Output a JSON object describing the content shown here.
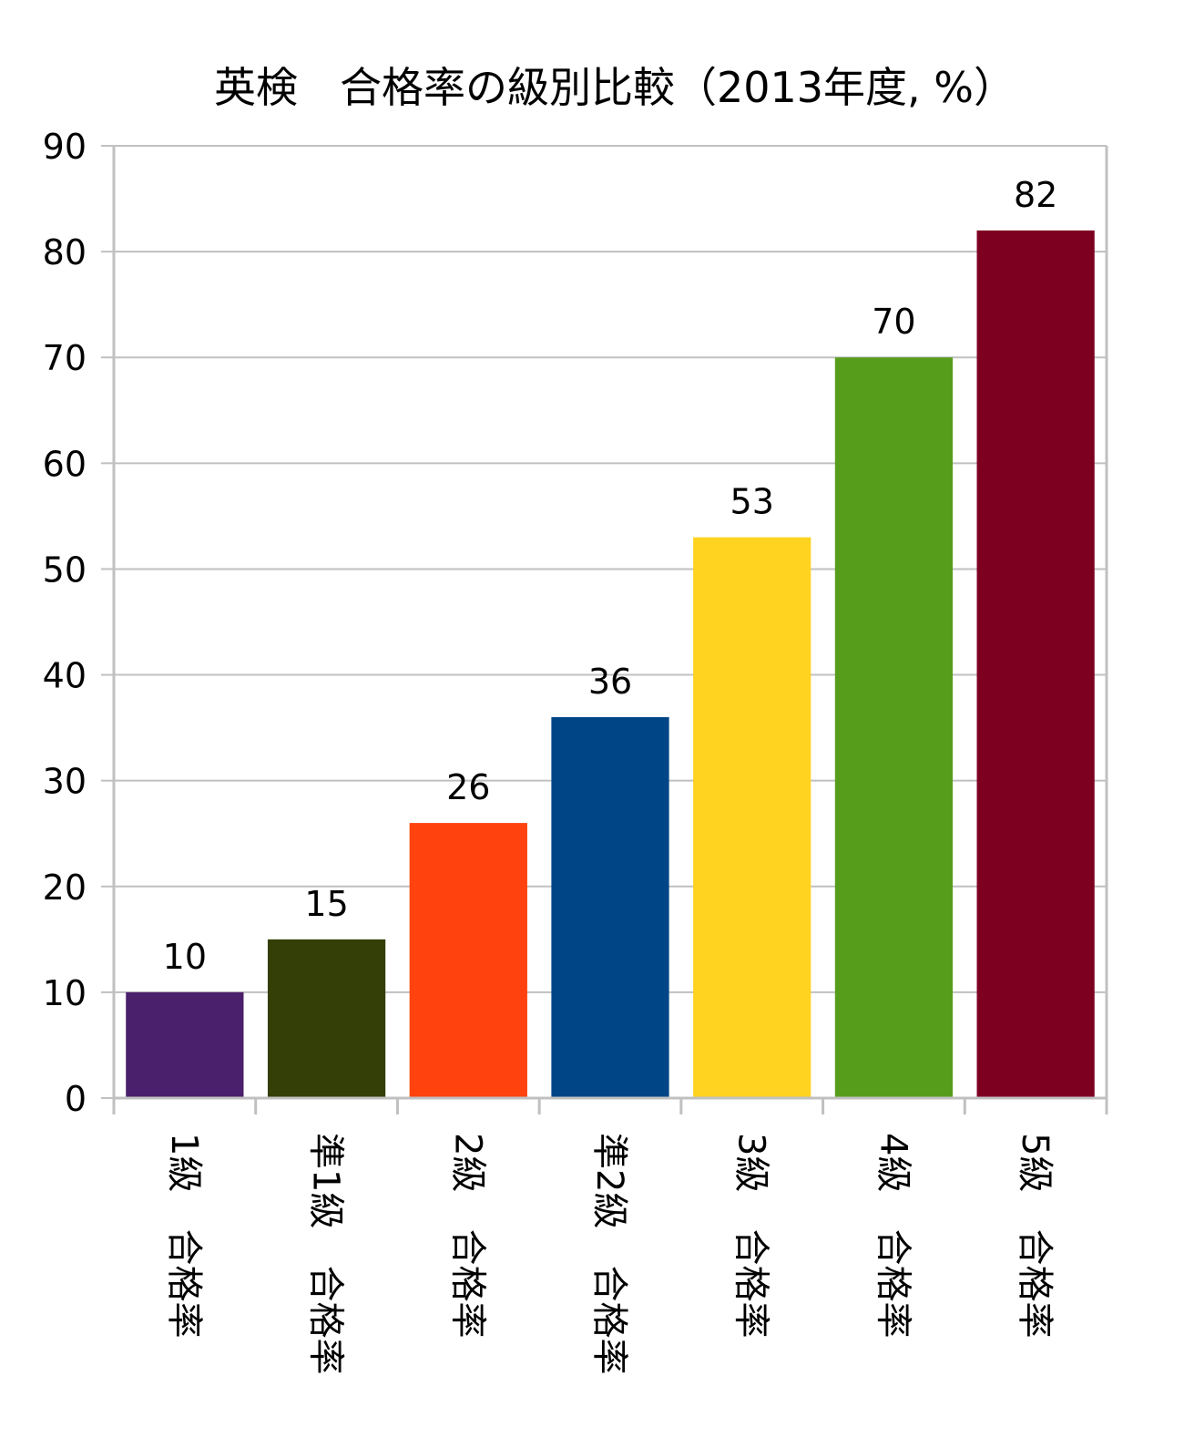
{
  "chart_data": {
    "type": "bar",
    "title": "英検　合格率の級別比較（2013年度, %）",
    "xlabel": "",
    "ylabel": "",
    "ylim": [
      0,
      90
    ],
    "yticks": [
      0,
      10,
      20,
      30,
      40,
      50,
      60,
      70,
      80,
      90
    ],
    "grid": true,
    "categories": [
      "1級　合格率",
      "準1級　合格率",
      "2級　合格率",
      "準2級　合格率",
      "3級　合格率",
      "4級　合格率",
      "5級　合格率"
    ],
    "values": [
      10,
      15,
      26,
      36,
      53,
      70,
      82
    ],
    "data_labels": [
      "10",
      "15",
      "26",
      "36",
      "53",
      "70",
      "82"
    ],
    "colors": [
      "#4a1f6b",
      "#333f06",
      "#ff420e",
      "#004586",
      "#ffd320",
      "#579d1c",
      "#7e0021"
    ],
    "grid_color": "#c0c0c0"
  }
}
